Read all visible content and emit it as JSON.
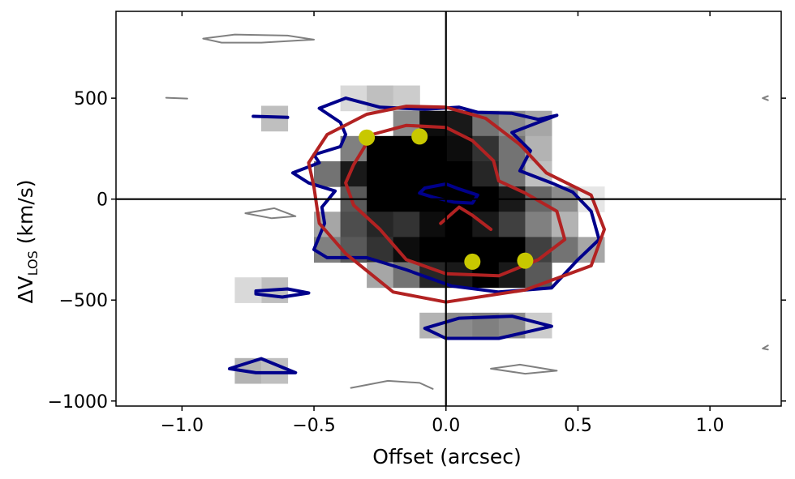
{
  "chart_data": {
    "type": "heatmap",
    "title": "",
    "xlabel": "Offset (arcsec)",
    "ylabel": {
      "delta": "Δ",
      "v": "V",
      "sub": "LOS",
      "unit": "(km/s)"
    },
    "xlim": [
      -1.25,
      1.27
    ],
    "ylim": [
      -1025,
      930
    ],
    "xticks": [
      -1.0,
      -0.5,
      0.0,
      0.5,
      1.0
    ],
    "xtick_labels": [
      "−1.0",
      "−0.5",
      "0.0",
      "0.5",
      "1.0"
    ],
    "yticks": [
      -1000,
      -500,
      0,
      500
    ],
    "ytick_labels": [
      "−1000",
      "−500",
      "0",
      "500"
    ],
    "grid": false,
    "legend": "none",
    "crosshair": {
      "x": 0.0,
      "y": 0
    },
    "pixel_grid": {
      "dx": 0.1,
      "dv": 125
    },
    "image_cells": [
      [
        -0.35,
        500,
        0.15
      ],
      [
        -0.25,
        500,
        0.25
      ],
      [
        -0.15,
        500,
        0.2
      ],
      [
        -0.65,
        400,
        0.25
      ],
      [
        -0.15,
        375,
        0.45
      ],
      [
        -0.05,
        375,
        0.95
      ],
      [
        0.05,
        375,
        0.9
      ],
      [
        0.15,
        375,
        0.55
      ],
      [
        0.25,
        375,
        0.45
      ],
      [
        0.35,
        375,
        0.35
      ],
      [
        -0.35,
        250,
        0.5
      ],
      [
        -0.25,
        250,
        1
      ],
      [
        -0.15,
        250,
        1
      ],
      [
        -0.05,
        250,
        1
      ],
      [
        0.05,
        250,
        0.95
      ],
      [
        0.15,
        250,
        0.8
      ],
      [
        0.25,
        250,
        0.55
      ],
      [
        0.35,
        250,
        0.3
      ],
      [
        -0.45,
        125,
        0.55
      ],
      [
        -0.35,
        125,
        0.9
      ],
      [
        -0.25,
        125,
        1
      ],
      [
        -0.15,
        125,
        1
      ],
      [
        -0.05,
        125,
        1
      ],
      [
        0.05,
        125,
        1
      ],
      [
        0.15,
        125,
        0.85
      ],
      [
        0.25,
        125,
        0.55
      ],
      [
        0.35,
        125,
        0.25
      ],
      [
        -0.35,
        0,
        0.65
      ],
      [
        -0.25,
        0,
        1
      ],
      [
        -0.15,
        0,
        1
      ],
      [
        -0.05,
        0,
        1
      ],
      [
        0.05,
        0,
        1
      ],
      [
        0.15,
        0,
        1
      ],
      [
        0.25,
        0,
        0.9
      ],
      [
        0.35,
        0,
        0.6
      ],
      [
        0.45,
        0,
        0.45
      ],
      [
        0.55,
        0,
        0.1
      ],
      [
        -0.45,
        -125,
        0.35
      ],
      [
        -0.35,
        -125,
        0.7
      ],
      [
        -0.25,
        -125,
        0.85
      ],
      [
        -0.15,
        -125,
        0.8
      ],
      [
        -0.05,
        -125,
        0.95
      ],
      [
        0.05,
        -125,
        1
      ],
      [
        0.15,
        -125,
        0.9
      ],
      [
        0.25,
        -125,
        0.75
      ],
      [
        0.35,
        -125,
        0.5
      ],
      [
        0.45,
        -125,
        0.3
      ],
      [
        -0.45,
        -250,
        0.5
      ],
      [
        -0.35,
        -250,
        0.65
      ],
      [
        -0.25,
        -250,
        0.8
      ],
      [
        -0.15,
        -250,
        0.95
      ],
      [
        -0.05,
        -250,
        1
      ],
      [
        0.05,
        -250,
        1
      ],
      [
        0.15,
        -250,
        1
      ],
      [
        0.25,
        -250,
        1
      ],
      [
        0.35,
        -250,
        0.75
      ],
      [
        0.45,
        -250,
        0.55
      ],
      [
        0.55,
        -250,
        0.35
      ],
      [
        -0.25,
        -375,
        0.35
      ],
      [
        -0.15,
        -375,
        0.55
      ],
      [
        -0.05,
        -375,
        0.85
      ],
      [
        0.05,
        -375,
        0.9
      ],
      [
        0.15,
        -375,
        1
      ],
      [
        0.25,
        -375,
        0.9
      ],
      [
        0.35,
        -375,
        0.65
      ],
      [
        -0.65,
        -450,
        0.25
      ],
      [
        -0.75,
        -450,
        0.15
      ],
      [
        -0.05,
        -625,
        0.3
      ],
      [
        0.05,
        -625,
        0.45
      ],
      [
        0.15,
        -625,
        0.5
      ],
      [
        0.25,
        -625,
        0.45
      ],
      [
        0.35,
        -625,
        0.2
      ],
      [
        -0.75,
        -850,
        0.3
      ],
      [
        -0.65,
        -850,
        0.25
      ]
    ],
    "contours": [
      {
        "name": "",
        "color": "#00008b",
        "width": 4,
        "closed": true,
        "points": [
          [
            -0.38,
            500
          ],
          [
            -0.25,
            455
          ],
          [
            -0.08,
            445
          ],
          [
            0.05,
            455
          ],
          [
            0.12,
            430
          ],
          [
            0.25,
            425
          ],
          [
            0.35,
            395
          ],
          [
            0.42,
            415
          ],
          [
            0.25,
            330
          ],
          [
            0.32,
            240
          ],
          [
            0.28,
            140
          ],
          [
            0.4,
            80
          ],
          [
            0.48,
            35
          ],
          [
            0.55,
            -60
          ],
          [
            0.58,
            -200
          ],
          [
            0.5,
            -300
          ],
          [
            0.4,
            -440
          ],
          [
            0.2,
            -460
          ],
          [
            0.02,
            -430
          ],
          [
            -0.15,
            -350
          ],
          [
            -0.3,
            -290
          ],
          [
            -0.45,
            -290
          ],
          [
            -0.5,
            -250
          ],
          [
            -0.46,
            -120
          ],
          [
            -0.47,
            -40
          ],
          [
            -0.42,
            40
          ],
          [
            -0.52,
            80
          ],
          [
            -0.58,
            130
          ],
          [
            -0.48,
            180
          ],
          [
            -0.5,
            220
          ],
          [
            -0.4,
            260
          ],
          [
            -0.38,
            320
          ],
          [
            -0.4,
            380
          ],
          [
            -0.48,
            450
          ]
        ]
      },
      {
        "name": "",
        "color": "#00008b",
        "width": 4,
        "closed": true,
        "points": [
          [
            -0.08,
            55
          ],
          [
            0.0,
            75
          ],
          [
            0.05,
            50
          ],
          [
            0.12,
            20
          ],
          [
            0.1,
            -20
          ],
          [
            0.03,
            -15
          ],
          [
            -0.05,
            10
          ],
          [
            -0.1,
            30
          ]
        ]
      },
      {
        "name": "",
        "color": "#00008b",
        "width": 4,
        "closed": true,
        "points": [
          [
            -0.08,
            -640
          ],
          [
            0.05,
            -590
          ],
          [
            0.25,
            -580
          ],
          [
            0.4,
            -630
          ],
          [
            0.2,
            -690
          ],
          [
            0.0,
            -690
          ]
        ]
      },
      {
        "name": "",
        "color": "#00008b",
        "width": 4,
        "closed": true,
        "points": [
          [
            -0.72,
            -455
          ],
          [
            -0.6,
            -445
          ],
          [
            -0.52,
            -465
          ],
          [
            -0.62,
            -485
          ],
          [
            -0.72,
            -470
          ]
        ]
      },
      {
        "name": "",
        "color": "#00008b",
        "width": 4,
        "closed": true,
        "points": [
          [
            -0.82,
            -840
          ],
          [
            -0.7,
            -790
          ],
          [
            -0.57,
            -860
          ],
          [
            -0.72,
            -860
          ]
        ]
      },
      {
        "name": "",
        "color": "#00008b",
        "width": 4,
        "closed": false,
        "points": [
          [
            -0.73,
            410
          ],
          [
            -0.6,
            405
          ]
        ]
      },
      {
        "name": "",
        "color": "#b22222",
        "width": 4,
        "closed": true,
        "points": [
          [
            -0.45,
            320
          ],
          [
            -0.3,
            420
          ],
          [
            -0.15,
            460
          ],
          [
            0.0,
            455
          ],
          [
            0.15,
            400
          ],
          [
            0.28,
            270
          ],
          [
            0.38,
            130
          ],
          [
            0.55,
            20
          ],
          [
            0.6,
            -150
          ],
          [
            0.55,
            -330
          ],
          [
            0.3,
            -450
          ],
          [
            0.0,
            -510
          ],
          [
            -0.2,
            -460
          ],
          [
            -0.38,
            -270
          ],
          [
            -0.48,
            -120
          ],
          [
            -0.5,
            60
          ],
          [
            -0.52,
            180
          ]
        ]
      },
      {
        "name": "",
        "color": "#b22222",
        "width": 4,
        "closed": true,
        "points": [
          [
            -0.35,
            170
          ],
          [
            -0.28,
            320
          ],
          [
            -0.15,
            365
          ],
          [
            0.0,
            355
          ],
          [
            0.1,
            290
          ],
          [
            0.18,
            190
          ],
          [
            0.2,
            90
          ],
          [
            0.3,
            30
          ],
          [
            0.42,
            -60
          ],
          [
            0.45,
            -200
          ],
          [
            0.35,
            -300
          ],
          [
            0.2,
            -380
          ],
          [
            0.0,
            -370
          ],
          [
            -0.15,
            -300
          ],
          [
            -0.25,
            -150
          ],
          [
            -0.35,
            -30
          ],
          [
            -0.38,
            80
          ]
        ]
      },
      {
        "name": "",
        "color": "#b22222",
        "width": 4,
        "closed": false,
        "points": [
          [
            -0.02,
            -120
          ],
          [
            0.05,
            -40
          ],
          [
            0.1,
            -80
          ],
          [
            0.17,
            -150
          ]
        ]
      },
      {
        "name": "",
        "color": "#808080",
        "width": 2,
        "closed": true,
        "points": [
          [
            -0.92,
            795
          ],
          [
            -0.8,
            815
          ],
          [
            -0.6,
            810
          ],
          [
            -0.5,
            790
          ],
          [
            -0.7,
            775
          ],
          [
            -0.85,
            775
          ]
        ]
      },
      {
        "name": "",
        "color": "#808080",
        "width": 2,
        "closed": false,
        "points": [
          [
            -1.06,
            502
          ],
          [
            -0.98,
            498
          ]
        ]
      },
      {
        "name": "",
        "color": "#808080",
        "width": 2,
        "closed": true,
        "points": [
          [
            -0.76,
            -70
          ],
          [
            -0.65,
            -45
          ],
          [
            -0.57,
            -85
          ],
          [
            -0.66,
            -95
          ]
        ]
      },
      {
        "name": "",
        "color": "#808080",
        "width": 2,
        "closed": true,
        "points": [
          [
            0.17,
            -840
          ],
          [
            0.28,
            -820
          ],
          [
            0.42,
            -850
          ],
          [
            0.3,
            -865
          ]
        ]
      },
      {
        "name": "",
        "color": "#808080",
        "width": 2,
        "closed": false,
        "points": [
          [
            -0.36,
            -935
          ],
          [
            -0.22,
            -900
          ],
          [
            -0.1,
            -910
          ],
          [
            -0.05,
            -940
          ]
        ]
      },
      {
        "name": "",
        "color": "#808080",
        "width": 2,
        "closed": false,
        "points": [
          [
            1.22,
            510
          ],
          [
            1.2,
            500
          ],
          [
            1.22,
            490
          ]
        ]
      },
      {
        "name": "",
        "color": "#808080",
        "width": 2,
        "closed": false,
        "points": [
          [
            1.22,
            -725
          ],
          [
            1.2,
            -740
          ],
          [
            1.22,
            -745
          ]
        ]
      }
    ],
    "points": [
      {
        "x": -0.3,
        "y": 305,
        "color": "#c8c800"
      },
      {
        "x": -0.1,
        "y": 310,
        "color": "#c8c800"
      },
      {
        "x": 0.1,
        "y": -310,
        "color": "#c8c800"
      },
      {
        "x": 0.3,
        "y": -305,
        "color": "#c8c800"
      }
    ]
  }
}
